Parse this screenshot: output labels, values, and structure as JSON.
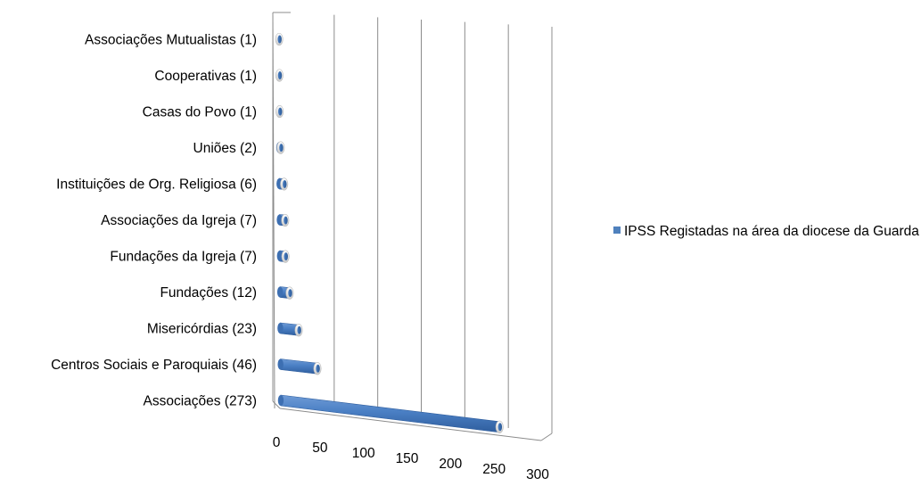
{
  "chart_data": {
    "type": "bar",
    "orientation": "horizontal",
    "three_d": true,
    "categories": [
      "Associações Mutualistas (1)",
      "Cooperativas (1)",
      "Casas do Povo (1)",
      "Uniões (2)",
      "Instituições de Org. Religiosa (6)",
      "Associações da Igreja (7)",
      "Fundações da Igreja (7)",
      "Fundações (12)",
      "Misericórdias (23)",
      "Centros Sociais e Paroquiais (46)",
      "Associações  (273)"
    ],
    "series": [
      {
        "name": "IPSS Registadas na área da diocese da Guarda",
        "values": [
          1,
          1,
          1,
          2,
          6,
          7,
          7,
          12,
          23,
          46,
          273
        ],
        "color": "#4F81BD"
      }
    ],
    "xticks": [
      "0",
      "50",
      "100",
      "150",
      "200",
      "250",
      "300"
    ],
    "xlim": [
      0,
      300
    ],
    "grid": true,
    "legend_position": "right"
  }
}
